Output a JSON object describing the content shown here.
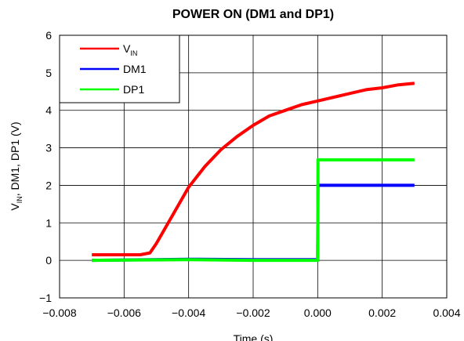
{
  "chart_data": {
    "type": "line",
    "title": "POWER ON (DM1 and DP1)",
    "xlabel": "Time (s)",
    "ylabel": {
      "parts": [
        "V",
        "IN",
        ", DM1, DP1 (V)"
      ]
    },
    "xlim": [
      -0.008,
      0.004
    ],
    "ylim": [
      -1,
      6
    ],
    "xticks": [
      "−0.008",
      "−0.006",
      "−0.004",
      "−0.002",
      "0.000",
      "0.002",
      "0.004"
    ],
    "yticks": [
      "−1",
      "0",
      "1",
      "2",
      "3",
      "4",
      "5",
      "6"
    ],
    "grid": true,
    "legend_position": "top-left",
    "series": [
      {
        "name": "VIN",
        "name_parts": [
          "V",
          "IN"
        ],
        "color": "#ff0000",
        "x": [
          -0.007,
          -0.0055,
          -0.0052,
          -0.005,
          -0.0045,
          -0.004,
          -0.0035,
          -0.003,
          -0.0025,
          -0.002,
          -0.0015,
          -0.001,
          -0.0005,
          0.0,
          0.0005,
          0.001,
          0.0015,
          0.002,
          0.0025,
          0.003
        ],
        "y": [
          0.15,
          0.15,
          0.2,
          0.45,
          1.2,
          1.95,
          2.5,
          2.95,
          3.3,
          3.6,
          3.85,
          4.0,
          4.15,
          4.25,
          4.35,
          4.45,
          4.55,
          4.6,
          4.68,
          4.72
        ]
      },
      {
        "name": "DM1",
        "color": "#0000ff",
        "x": [
          -0.007,
          -0.004,
          -0.002,
          0.0,
          1e-05,
          0.001,
          0.002,
          0.003
        ],
        "y": [
          0.0,
          0.03,
          0.02,
          0.02,
          2.0,
          2.0,
          2.0,
          2.0
        ]
      },
      {
        "name": "DP1",
        "color": "#00ff00",
        "x": [
          -0.007,
          -0.004,
          -0.002,
          0.0,
          1e-05,
          0.001,
          0.002,
          0.003
        ],
        "y": [
          0.0,
          0.02,
          0.0,
          0.0,
          2.68,
          2.68,
          2.68,
          2.68
        ]
      }
    ]
  }
}
